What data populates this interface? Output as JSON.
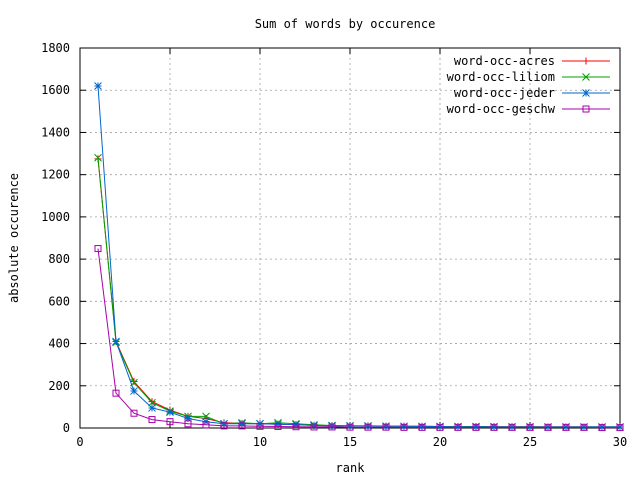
{
  "chart_data": {
    "type": "line",
    "title": "Sum of words by occurence",
    "xlabel": "rank",
    "ylabel": "absolute occurence",
    "xlim": [
      0,
      30
    ],
    "ylim": [
      0,
      1800
    ],
    "xticks": [
      0,
      5,
      10,
      15,
      20,
      25,
      30
    ],
    "yticks": [
      0,
      200,
      400,
      600,
      800,
      1000,
      1200,
      1400,
      1600,
      1800
    ],
    "grid": true,
    "legend_position": "top-right",
    "x": [
      1,
      2,
      3,
      4,
      5,
      6,
      7,
      8,
      9,
      10,
      11,
      12,
      13,
      14,
      15,
      16,
      17,
      18,
      19,
      20,
      21,
      22,
      23,
      24,
      25,
      26,
      27,
      28,
      29,
      30
    ],
    "series": [
      {
        "name": "word-occ-acres",
        "color": "#ff0000",
        "marker": "plus",
        "values": [
          1275,
          410,
          220,
          125,
          85,
          55,
          45,
          25,
          22,
          20,
          18,
          16,
          13,
          11,
          10,
          10,
          9,
          8,
          8,
          7,
          7,
          7,
          6,
          6,
          6,
          5,
          5,
          5,
          5,
          5
        ]
      },
      {
        "name": "word-occ-liliom",
        "color": "#00a000",
        "marker": "x",
        "values": [
          1280,
          405,
          215,
          120,
          80,
          55,
          55,
          20,
          25,
          20,
          25,
          20,
          15,
          12,
          10,
          10,
          9,
          8,
          8,
          7,
          7,
          7,
          6,
          6,
          6,
          5,
          5,
          5,
          5,
          5
        ]
      },
      {
        "name": "word-occ-jeder",
        "color": "#0066cc",
        "marker": "star",
        "values": [
          1620,
          410,
          175,
          95,
          75,
          45,
          30,
          20,
          20,
          20,
          18,
          16,
          12,
          10,
          10,
          9,
          8,
          8,
          7,
          7,
          6,
          6,
          6,
          5,
          5,
          5,
          5,
          5,
          5,
          5
        ]
      },
      {
        "name": "word-occ-geschw",
        "color": "#aa00aa",
        "marker": "square",
        "values": [
          850,
          165,
          70,
          40,
          30,
          20,
          15,
          10,
          10,
          8,
          7,
          6,
          5,
          5,
          4,
          4,
          4,
          3,
          3,
          3,
          3,
          3,
          3,
          3,
          3,
          3,
          3,
          3,
          2,
          2
        ]
      }
    ]
  }
}
